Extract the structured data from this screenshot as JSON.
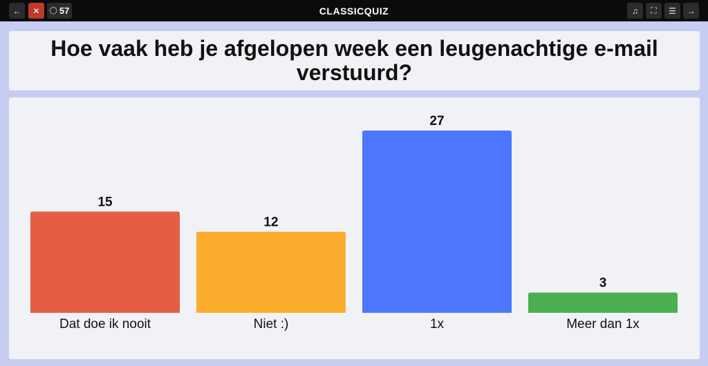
{
  "topbar": {
    "title": "CLASSICQUIZ",
    "back_icon": "arrow-left-icon",
    "close_icon": "close-icon",
    "counter": "57",
    "counter_icon": "comment-icon",
    "music_icon": "music-icon",
    "fullscreen_icon": "fullscreen-icon",
    "menu_icon": "menu-icon",
    "next_icon": "arrow-right-icon"
  },
  "question": {
    "text": "Hoe vaak heb je afgelopen week een leugenachtige e-mail verstuurd?"
  },
  "colors": {
    "background": "#c7cdf2",
    "card": "#f1f2f5",
    "topbar": "#0b0b0b",
    "close_button": "#c0392b"
  },
  "chart_data": {
    "type": "bar",
    "categories": [
      "Dat doe ik nooit",
      "Niet :)",
      "1x",
      "Meer dan 1x"
    ],
    "values": [
      15,
      12,
      27,
      3
    ],
    "colors": [
      "#e55c45",
      "#fbac2d",
      "#4d76ff",
      "#4caf50"
    ],
    "show_value_labels": true,
    "grid": false,
    "ylim": [
      0,
      27
    ]
  }
}
